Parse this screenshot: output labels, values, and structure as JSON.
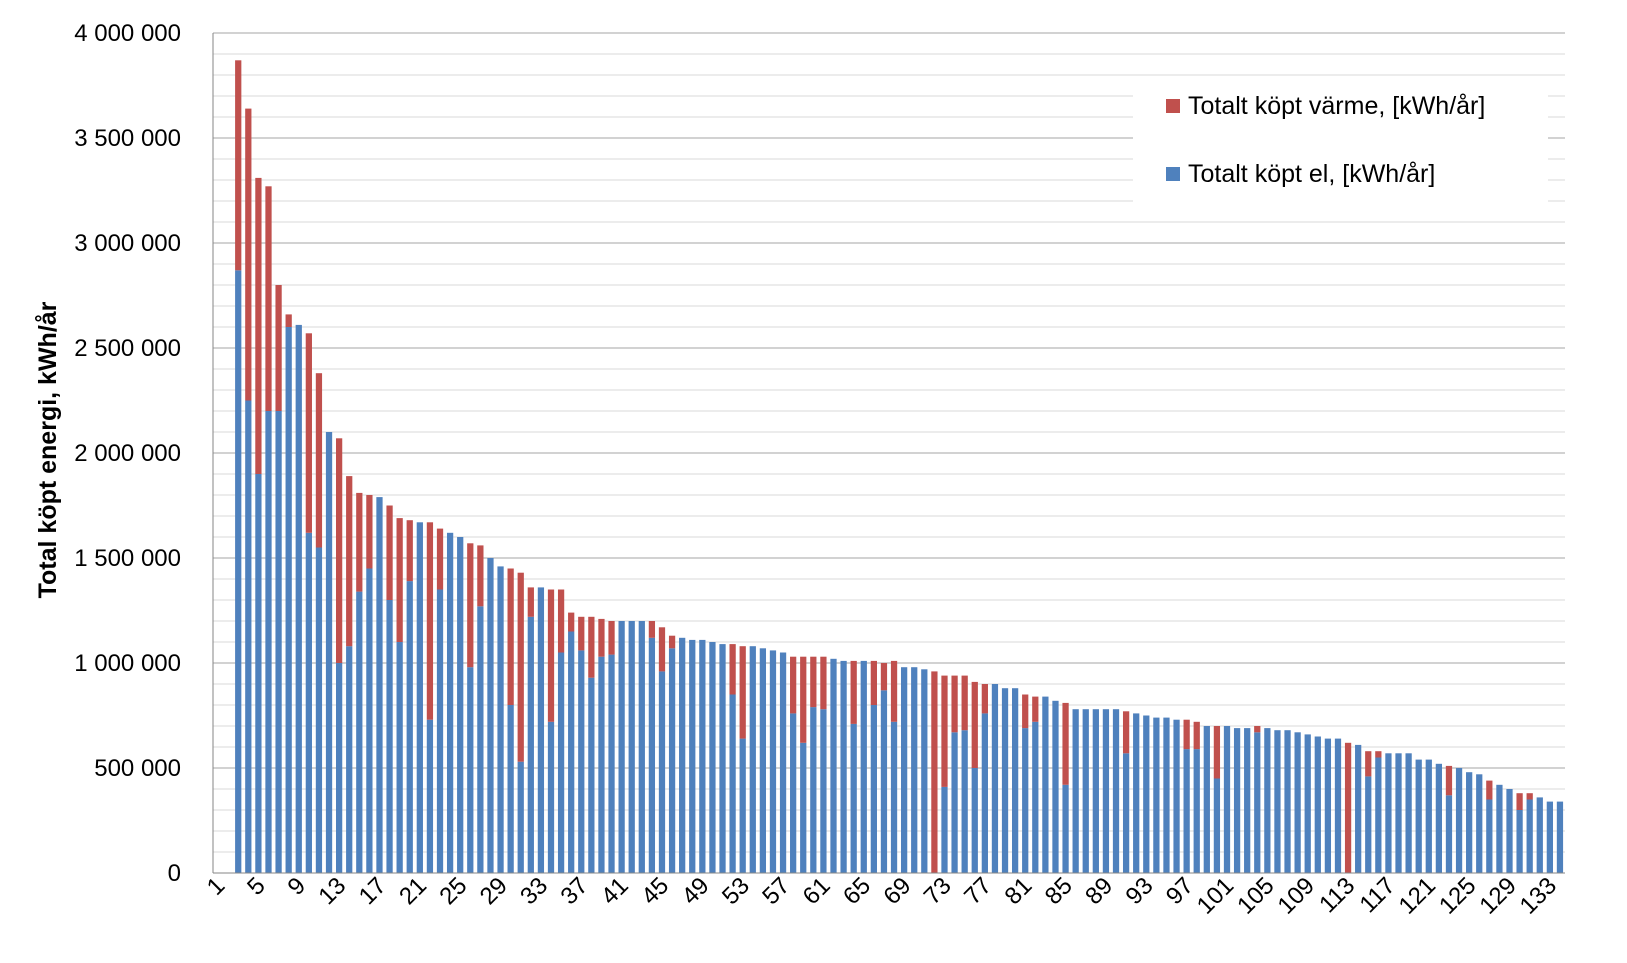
{
  "chart_data": {
    "type": "bar",
    "stacked": true,
    "ylabel": "Total köpt energi, kWh/år",
    "xlabel": "",
    "title": "",
    "ylim": [
      0,
      4000000
    ],
    "y_major_step": 500000,
    "y_minor_step": 100000,
    "y_tick_labels": [
      "0",
      "500 000",
      "1 000 000",
      "1 500 000",
      "2 000 000",
      "2 500 000",
      "3 000 000",
      "3 500 000",
      "4 000 000"
    ],
    "x_tick_labels": [
      "1",
      "5",
      "9",
      "13",
      "17",
      "21",
      "25",
      "29",
      "33",
      "37",
      "41",
      "45",
      "49",
      "53",
      "57",
      "61",
      "65",
      "69",
      "73",
      "77",
      "81",
      "85",
      "89",
      "93",
      "97",
      "101",
      "105",
      "109",
      "113",
      "117",
      "121",
      "125",
      "129",
      "133"
    ],
    "categories_count": 134,
    "grid": true,
    "legend_position": "top-right",
    "colors": {
      "el": "#4F81BD",
      "varme": "#C0504D"
    },
    "series": [
      {
        "name": "Totalt köpt el, [kWh/år]",
        "key": "el",
        "values": [
          0,
          0,
          2870000,
          2250000,
          1900000,
          2200000,
          2200000,
          2600000,
          2610000,
          1620000,
          1550000,
          2100000,
          1000000,
          1080000,
          1340000,
          1450000,
          1790000,
          1300000,
          1100000,
          1390000,
          1670000,
          730000,
          1350000,
          1620000,
          1600000,
          980000,
          1270000,
          1500000,
          1460000,
          800000,
          530000,
          1220000,
          1360000,
          720000,
          1050000,
          1150000,
          1060000,
          930000,
          1030000,
          1040000,
          1200000,
          1200000,
          1200000,
          1120000,
          960000,
          1070000,
          1120000,
          1110000,
          1110000,
          1100000,
          1090000,
          850000,
          640000,
          1080000,
          1070000,
          1060000,
          1050000,
          760000,
          620000,
          790000,
          780000,
          1020000,
          1010000,
          710000,
          1010000,
          800000,
          870000,
          720000,
          980000,
          980000,
          970000,
          0,
          410000,
          670000,
          680000,
          500000,
          760000,
          900000,
          880000,
          880000,
          690000,
          720000,
          840000,
          820000,
          420000,
          780000,
          780000,
          780000,
          780000,
          780000,
          570000,
          760000,
          750000,
          740000,
          740000,
          730000,
          590000,
          590000,
          700000,
          450000,
          700000,
          690000,
          690000,
          670000,
          690000,
          680000,
          680000,
          670000,
          660000,
          650000,
          640000,
          640000,
          0,
          610000,
          460000,
          550000,
          570000,
          570000,
          570000,
          540000,
          540000,
          520000,
          370000,
          500000,
          480000,
          470000,
          350000,
          420000,
          400000,
          300000,
          350000,
          360000,
          340000,
          340000
        ]
      },
      {
        "name": "Totalt köpt värme, [kWh/år]",
        "key": "varme",
        "values": [
          0,
          0,
          1000000,
          1390000,
          1410000,
          1070000,
          600000,
          60000,
          0,
          950000,
          830000,
          0,
          1070000,
          810000,
          470000,
          350000,
          0,
          450000,
          590000,
          290000,
          0,
          940000,
          290000,
          0,
          0,
          590000,
          290000,
          0,
          0,
          650000,
          900000,
          140000,
          0,
          630000,
          300000,
          90000,
          160000,
          290000,
          180000,
          160000,
          0,
          0,
          0,
          80000,
          210000,
          60000,
          0,
          0,
          0,
          0,
          0,
          240000,
          440000,
          0,
          0,
          0,
          0,
          270000,
          410000,
          240000,
          250000,
          0,
          0,
          300000,
          0,
          210000,
          130000,
          290000,
          0,
          0,
          0,
          960000,
          530000,
          270000,
          260000,
          410000,
          140000,
          0,
          0,
          0,
          160000,
          120000,
          0,
          0,
          390000,
          0,
          0,
          0,
          0,
          0,
          200000,
          0,
          0,
          0,
          0,
          0,
          140000,
          130000,
          0,
          250000,
          0,
          0,
          0,
          30000,
          0,
          0,
          0,
          0,
          0,
          0,
          0,
          0,
          620000,
          0,
          120000,
          30000,
          0,
          0,
          0,
          0,
          0,
          0,
          140000,
          0,
          0,
          0,
          90000,
          0,
          0,
          80000,
          30000,
          0,
          0,
          0
        ]
      }
    ]
  }
}
